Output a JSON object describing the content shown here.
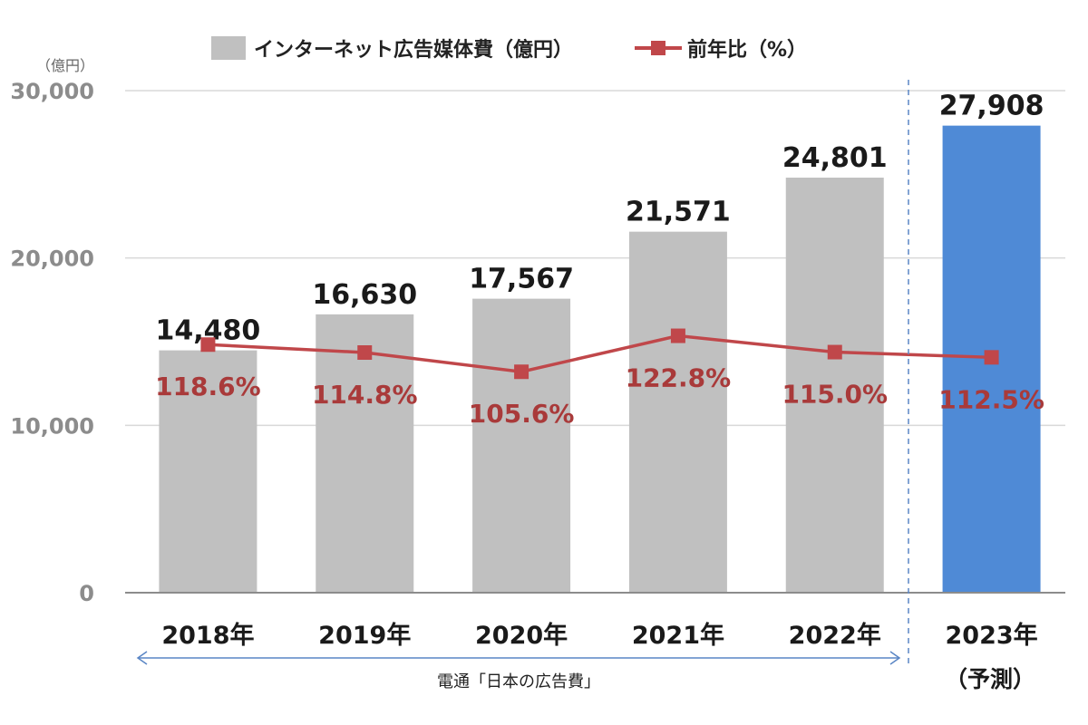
{
  "chart_data": {
    "type": "bar",
    "categories": [
      "2018年",
      "2019年",
      "2020年",
      "2021年",
      "2022年",
      "2023年"
    ],
    "forecast_note": "（予測）",
    "unit": "（億円）",
    "ylim": [
      0,
      30000
    ],
    "yticks": [
      "0",
      "10,000",
      "20,000",
      "30,000"
    ],
    "ytick_values": [
      0,
      10000,
      20000,
      30000
    ],
    "grid": true,
    "legend_position": "top",
    "series": [
      {
        "name": "インターネット広告媒体費（億円）",
        "kind": "bar",
        "values": [
          14480,
          16630,
          17567,
          21571,
          24801,
          27908
        ],
        "labels": [
          "14,480",
          "16,630",
          "17,567",
          "21,571",
          "24,801",
          "27,908"
        ],
        "color": "#c0c0c0",
        "forecast_color": "#4f8ad6"
      },
      {
        "name": "前年比（%）",
        "kind": "line",
        "values": [
          118.6,
          114.8,
          105.6,
          122.8,
          115.0,
          112.5
        ],
        "labels": [
          "118.6%",
          "114.8%",
          "105.6%",
          "122.8%",
          "115.0%",
          "112.5%"
        ],
        "color": "#c0474a"
      }
    ],
    "source": "電通「日本の広告費」"
  }
}
